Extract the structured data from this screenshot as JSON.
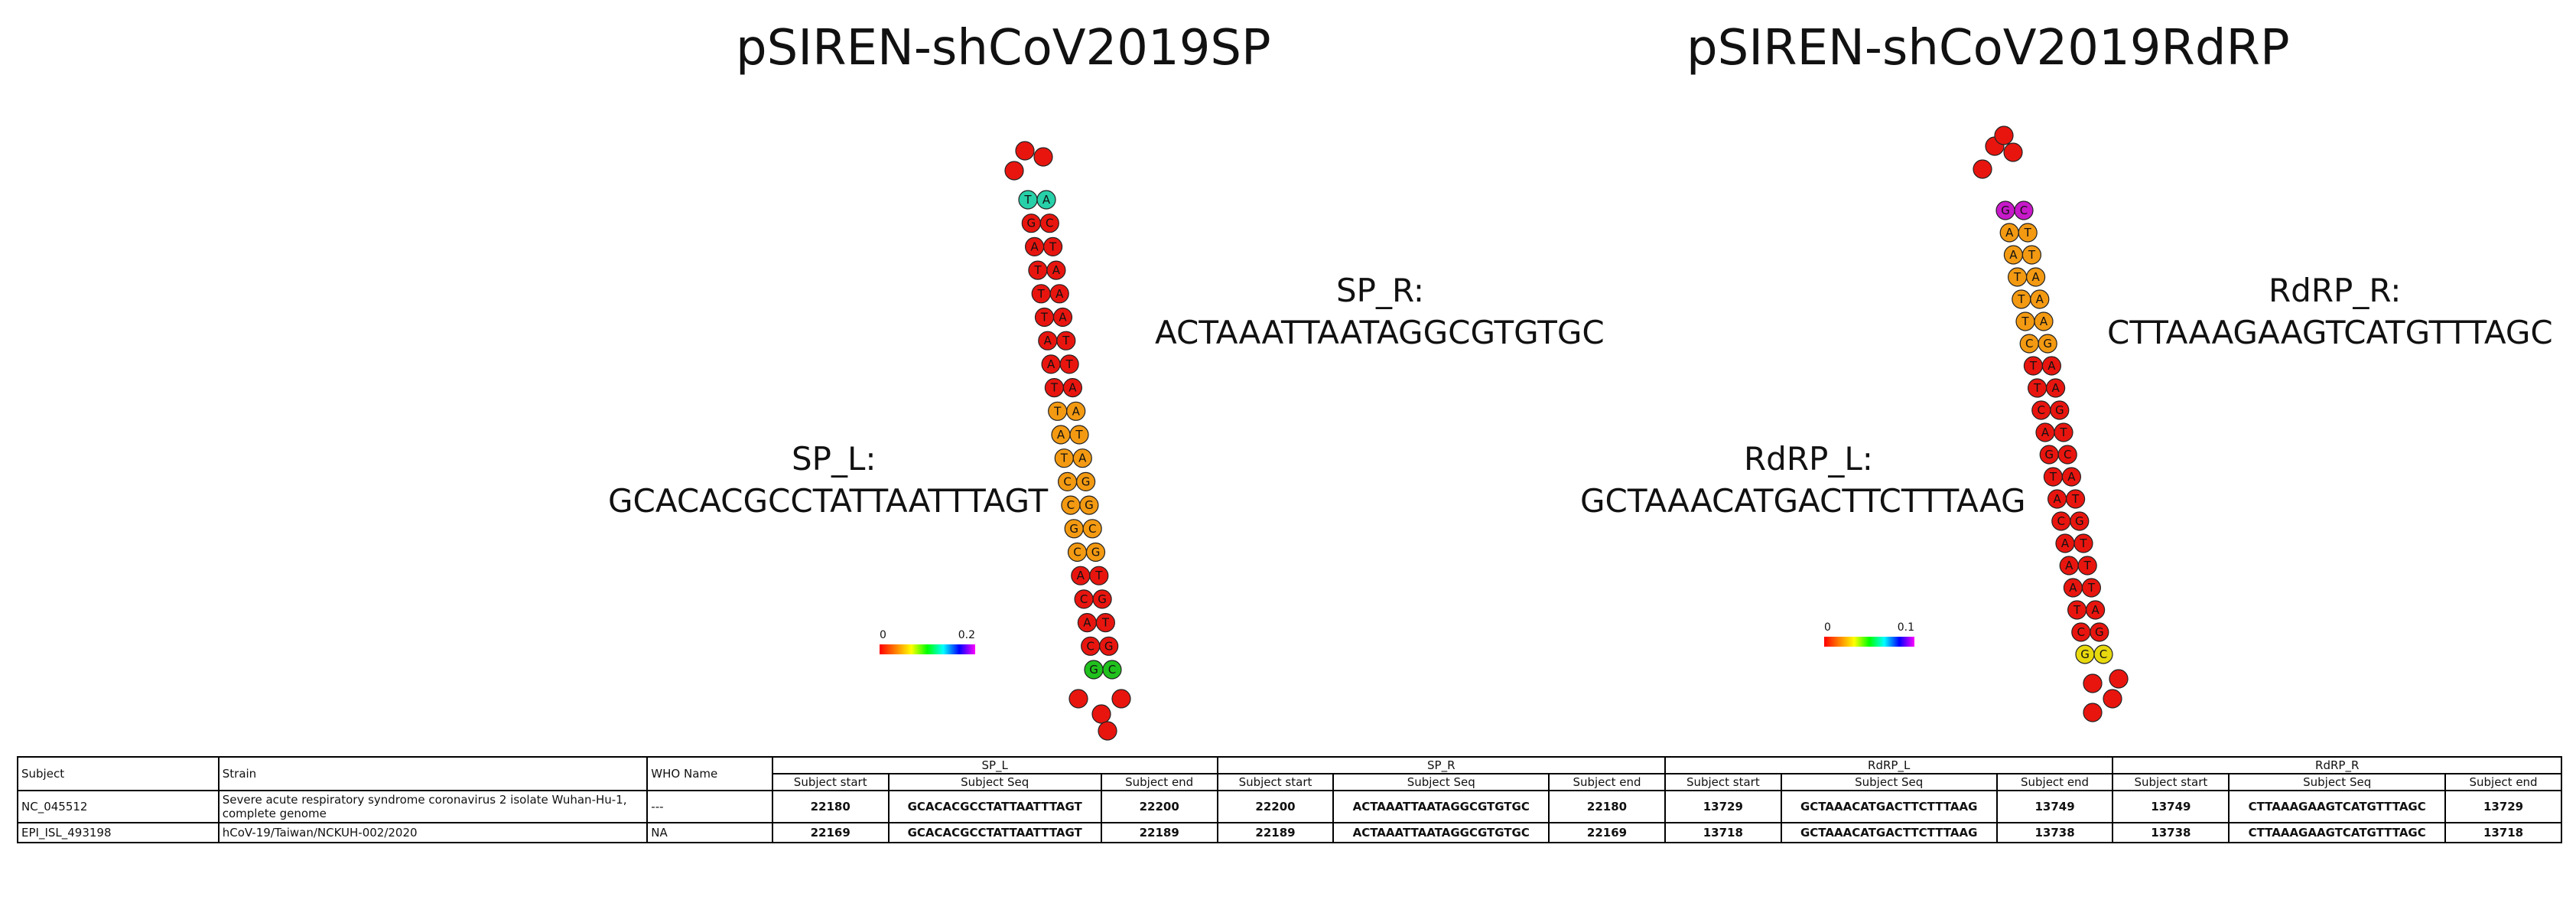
{
  "panels": [
    {
      "title": "pSIREN-shCoV2019SP",
      "left_label": "SP_L:",
      "left_seq": "GCACACGCCTATTAATTTAGT",
      "right_label": "SP_R:",
      "right_seq": "ACTAAATTAATAGGCGTGTGC",
      "scale_min": "0",
      "scale_max": "0.2"
    },
    {
      "title": "pSIREN-shCoV2019RdRP",
      "left_label": "RdRP_L:",
      "left_seq": "GCTAAACATGACTTCTTTAAG",
      "right_label": "RdRP_R:",
      "right_seq": "CTTAAAGAAGTCATGTTTAGC",
      "scale_min": "0",
      "scale_max": "0.1"
    }
  ],
  "hairpins": [
    {
      "left_strand": [
        "G",
        "C",
        "A",
        "C",
        "A",
        "C",
        "G",
        "C",
        "C",
        "T",
        "A",
        "T",
        "T",
        "A",
        "A",
        "T",
        "T",
        "T",
        "A",
        "G",
        "T"
      ],
      "right_strand": [
        "A",
        "C",
        "T",
        "A",
        "A",
        "A",
        "T",
        "T",
        "A",
        "A",
        "T",
        "A",
        "G",
        "G",
        "C",
        "G",
        "T",
        "G",
        "T",
        "G",
        "C"
      ],
      "colors": {
        "red": "#e8150f",
        "orange": "#f39a12",
        "green": "#21c11d",
        "teal": "#27d0a8",
        "yellow": "#e8d90f",
        "magenta": "#c719c9"
      }
    },
    {
      "left_strand": [
        "G",
        "C",
        "T",
        "A",
        "A",
        "A",
        "C",
        "A",
        "T",
        "G",
        "A",
        "C",
        "T",
        "T",
        "C",
        "T",
        "T",
        "T",
        "A",
        "A",
        "G"
      ],
      "right_strand": [
        "C",
        "T",
        "T",
        "A",
        "A",
        "A",
        "G",
        "A",
        "A",
        "G",
        "T",
        "C",
        "A",
        "T",
        "G",
        "T",
        "T",
        "T",
        "A",
        "G",
        "C"
      ],
      "colors": {
        "red": "#e8150f",
        "orange": "#f39a12",
        "green": "#21c11d",
        "teal": "#27d0a8",
        "yellow": "#e8d90f",
        "magenta": "#c719c9"
      }
    }
  ],
  "table": {
    "col_subject": "Subject",
    "col_strain": "Strain",
    "col_who": "WHO Name",
    "groups": [
      "SP_L",
      "SP_R",
      "RdRP_L",
      "RdRP_R"
    ],
    "sub_start": "Subject start",
    "sub_seq": "Subject Seq",
    "sub_end": "Subject end",
    "rows": [
      {
        "subject": "NC_045512",
        "strain": "Severe acute respiratory syndrome coronavirus 2 isolate Wuhan-Hu-1, complete genome",
        "who": "---",
        "sp_l": [
          "22180",
          "GCACACGCCTATTAATTTAGT",
          "22200"
        ],
        "sp_r": [
          "22200",
          "ACTAAATTAATAGGCGTGTGC",
          "22180"
        ],
        "rdrp_l": [
          "13729",
          "GCTAAACATGACTTCTTTAAG",
          "13749"
        ],
        "rdrp_r": [
          "13749",
          "CTTAAAGAAGTCATGTTTAGC",
          "13729"
        ]
      },
      {
        "subject": "EPI_ISL_493198",
        "strain": "hCoV-19/Taiwan/NCKUH-002/2020",
        "who": "NA",
        "sp_l": [
          "22169",
          "GCACACGCCTATTAATTTAGT",
          "22189"
        ],
        "sp_r": [
          "22189",
          "ACTAAATTAATAGGCGTGTGC",
          "22169"
        ],
        "rdrp_l": [
          "13718",
          "GCTAAACATGACTTCTTTAAG",
          "13738"
        ],
        "rdrp_r": [
          "13738",
          "CTTAAAGAAGTCATGTTTAGC",
          "13718"
        ]
      }
    ]
  }
}
